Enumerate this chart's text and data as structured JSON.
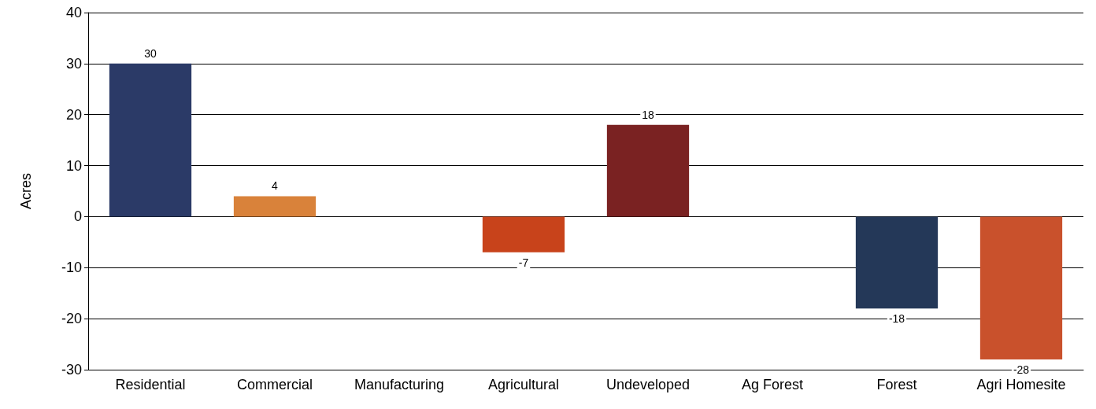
{
  "chart_data": {
    "type": "bar",
    "ylabel": "Acres",
    "categories": [
      "Residential",
      "Commercial",
      "Manufacturing",
      "Agricultural",
      "Undeveloped",
      "Ag Forest",
      "Forest",
      "Agri Homesite"
    ],
    "values": [
      30,
      4,
      0,
      -7,
      18,
      0,
      -18,
      -28
    ],
    "value_labels": [
      "30",
      "4",
      null,
      "-7",
      "18",
      null,
      "-18",
      "-28"
    ],
    "colors": [
      "#2b3a67",
      "#d9823a",
      "#888888",
      "#c8431b",
      "#7a2222",
      "#888888",
      "#243858",
      "#c9512c"
    ],
    "ylim": [
      -30,
      40
    ],
    "yticks": [
      -30,
      -20,
      -10,
      0,
      10,
      20,
      30,
      40
    ],
    "grid": "y"
  }
}
